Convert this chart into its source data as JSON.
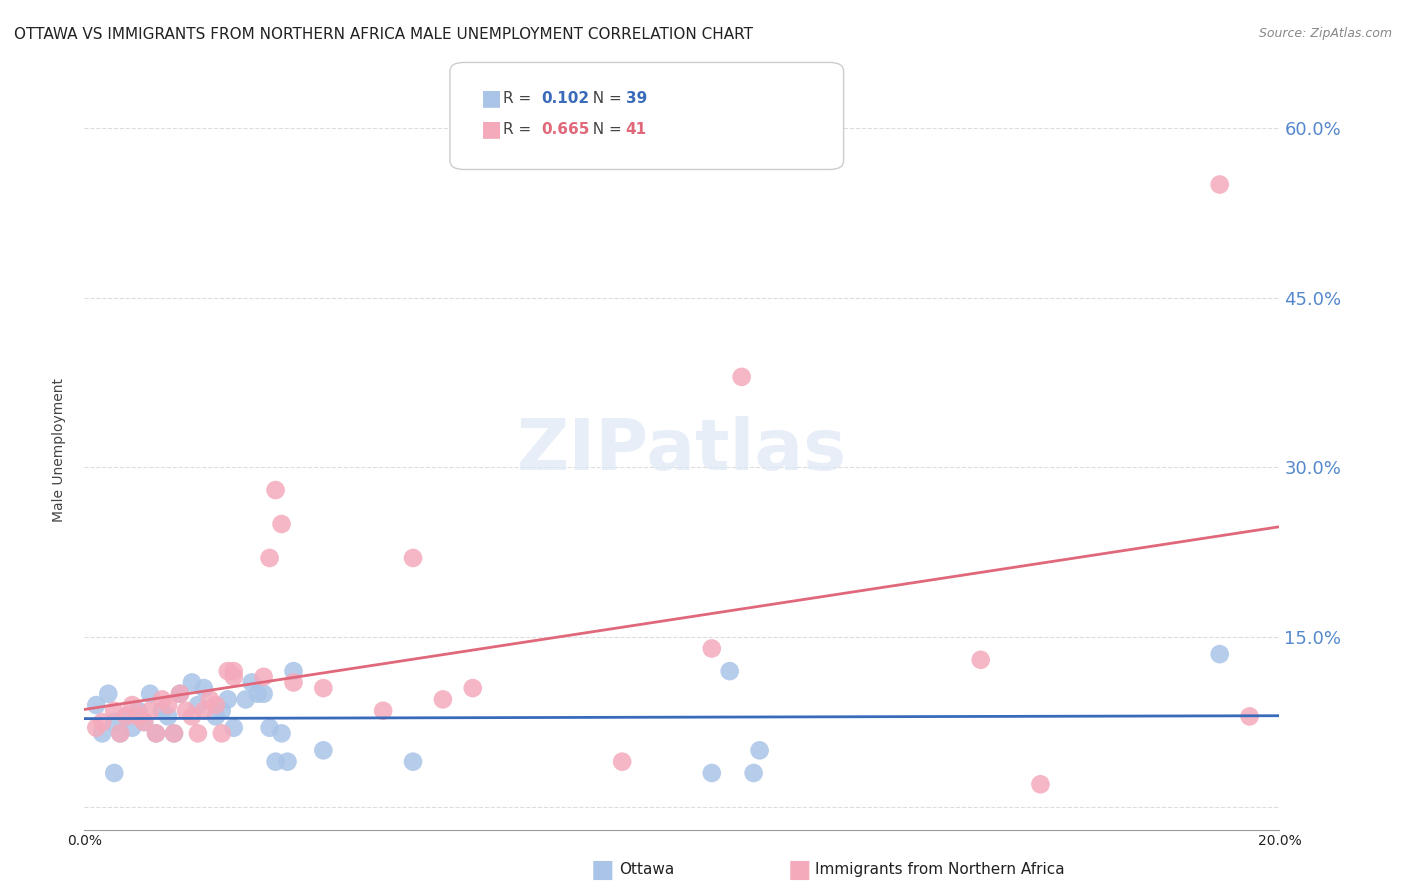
{
  "title": "OTTAWA VS IMMIGRANTS FROM NORTHERN AFRICA MALE UNEMPLOYMENT CORRELATION CHART",
  "source": "Source: ZipAtlas.com",
  "xlabel": "",
  "ylabel": "Male Unemployment",
  "xlim": [
    0.0,
    0.2
  ],
  "ylim": [
    -0.02,
    0.65
  ],
  "yticks": [
    0.0,
    0.15,
    0.3,
    0.45,
    0.6
  ],
  "ytick_labels": [
    "",
    "15.0%",
    "30.0%",
    "45.0%",
    "60.0%"
  ],
  "xticks": [
    0.0,
    0.05,
    0.1,
    0.15,
    0.2
  ],
  "xtick_labels": [
    "0.0%",
    "",
    "",
    "",
    "20.0%"
  ],
  "background_color": "#ffffff",
  "grid_color": "#dddddd",
  "ottawa_color": "#aac4e8",
  "immigrants_color": "#f4aabb",
  "ottawa_line_color": "#3a6bba",
  "immigrants_line_color": "#e0687a",
  "right_ytick_color": "#5588cc",
  "title_fontsize": 11,
  "axis_label_fontsize": 10,
  "tick_fontsize": 10,
  "ottawa_x": [
    0.002,
    0.003,
    0.004,
    0.005,
    0.006,
    0.007,
    0.008,
    0.009,
    0.01,
    0.011,
    0.012,
    0.013,
    0.014,
    0.015,
    0.016,
    0.018,
    0.019,
    0.02,
    0.022,
    0.023,
    0.024,
    0.025,
    0.027,
    0.028,
    0.029,
    0.03,
    0.031,
    0.032,
    0.033,
    0.034,
    0.035,
    0.04,
    0.055,
    0.105,
    0.108,
    0.112,
    0.113,
    0.19,
    0.005
  ],
  "ottawa_y": [
    0.09,
    0.065,
    0.1,
    0.075,
    0.065,
    0.08,
    0.07,
    0.085,
    0.075,
    0.1,
    0.065,
    0.085,
    0.08,
    0.065,
    0.1,
    0.11,
    0.09,
    0.105,
    0.08,
    0.085,
    0.095,
    0.07,
    0.095,
    0.11,
    0.1,
    0.1,
    0.07,
    0.04,
    0.065,
    0.04,
    0.12,
    0.05,
    0.04,
    0.03,
    0.12,
    0.03,
    0.05,
    0.135,
    0.03
  ],
  "immigrants_x": [
    0.002,
    0.003,
    0.005,
    0.006,
    0.007,
    0.008,
    0.009,
    0.01,
    0.011,
    0.012,
    0.013,
    0.014,
    0.015,
    0.016,
    0.017,
    0.018,
    0.019,
    0.02,
    0.021,
    0.022,
    0.023,
    0.024,
    0.025,
    0.03,
    0.031,
    0.032,
    0.033,
    0.04,
    0.05,
    0.055,
    0.06,
    0.065,
    0.09,
    0.105,
    0.11,
    0.15,
    0.16,
    0.19,
    0.195,
    0.025,
    0.035
  ],
  "immigrants_y": [
    0.07,
    0.075,
    0.085,
    0.065,
    0.08,
    0.09,
    0.08,
    0.075,
    0.085,
    0.065,
    0.095,
    0.09,
    0.065,
    0.1,
    0.085,
    0.08,
    0.065,
    0.085,
    0.095,
    0.09,
    0.065,
    0.12,
    0.12,
    0.115,
    0.22,
    0.28,
    0.25,
    0.105,
    0.085,
    0.22,
    0.095,
    0.105,
    0.04,
    0.14,
    0.38,
    0.13,
    0.02,
    0.55,
    0.08,
    0.115,
    0.11
  ]
}
